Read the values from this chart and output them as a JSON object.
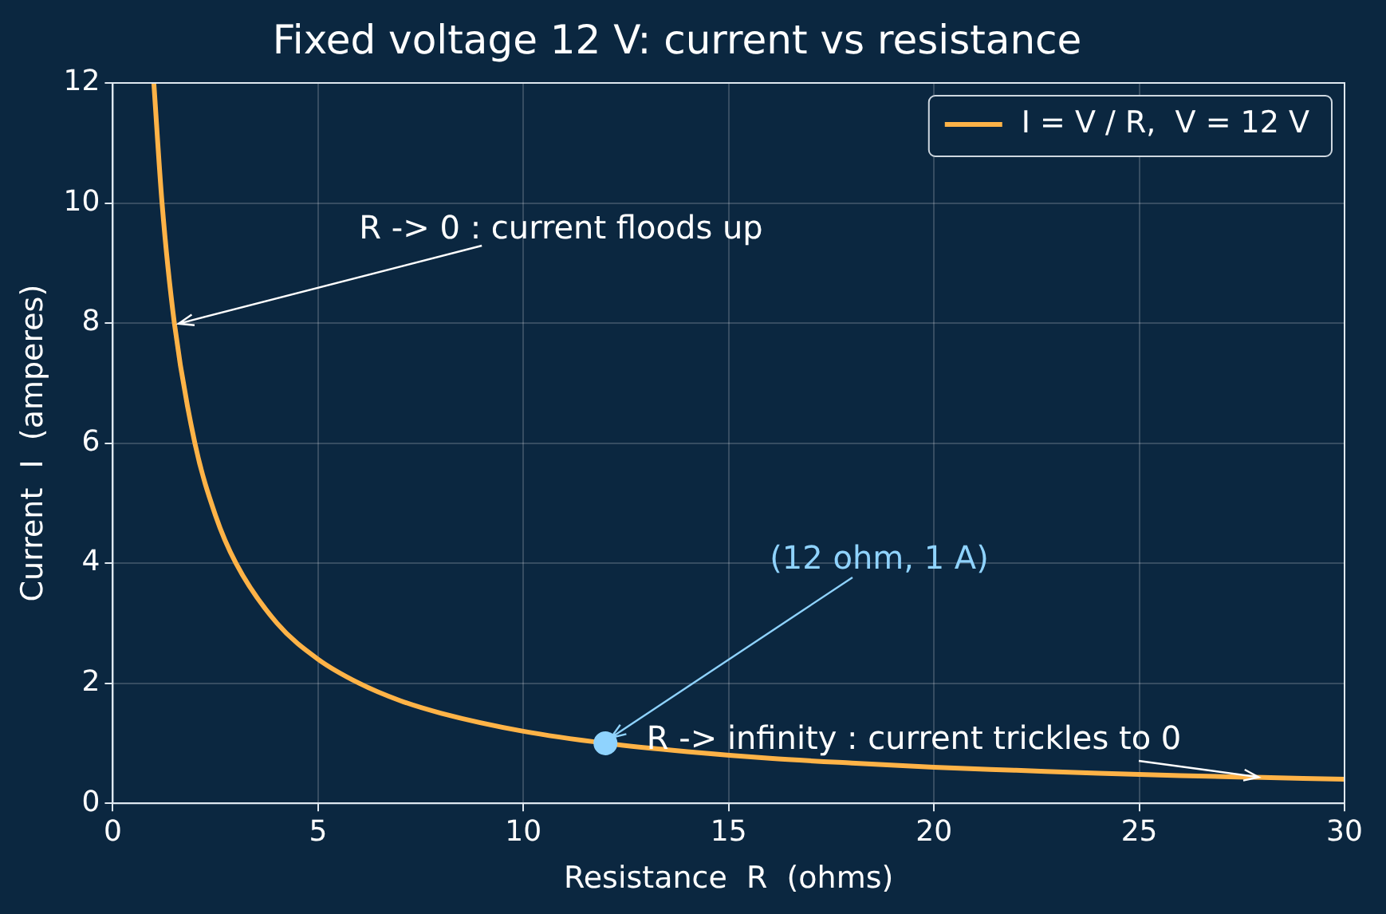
{
  "chart_data": {
    "type": "line",
    "title": "Fixed voltage 12 V: current vs resistance",
    "xlabel": "Resistance  R  (ohms)",
    "ylabel": "Current  I  (amperes)",
    "series": [
      {
        "name": "I = V / R,  V = 12 V",
        "color": "#ffb347",
        "x": [
          1,
          1.2,
          1.5,
          2,
          2.5,
          3,
          4,
          5,
          6,
          7,
          8,
          10,
          12,
          14,
          16,
          18,
          20,
          22,
          24,
          26,
          28,
          30
        ],
        "values": [
          12,
          10,
          8,
          6,
          4.8,
          4,
          3,
          2.4,
          2,
          1.71,
          1.5,
          1.2,
          1,
          0.86,
          0.75,
          0.67,
          0.6,
          0.55,
          0.5,
          0.46,
          0.43,
          0.4
        ]
      },
      {
        "type": "scatter",
        "color": "#8fd3fe",
        "marker": "circle",
        "x": [
          12
        ],
        "values": [
          1
        ]
      }
    ],
    "xlim": [
      0,
      30
    ],
    "xticks": [
      0,
      5,
      10,
      15,
      20,
      25,
      30
    ],
    "ylim": [
      0,
      12
    ],
    "yticks": [
      0,
      2,
      4,
      6,
      8,
      10,
      12
    ],
    "grid": true,
    "legend": "top right",
    "marker": "none",
    "annotations": [
      {
        "text": "R -> 0 : current floods up",
        "x": 1.5,
        "y": 8
      },
      {
        "text": "(12 ohm, 1 A)",
        "x": 12,
        "y": 1
      },
      {
        "text": "R -> infinity : current trickles to 0",
        "x": 28,
        "y": 0.43
      }
    ]
  }
}
